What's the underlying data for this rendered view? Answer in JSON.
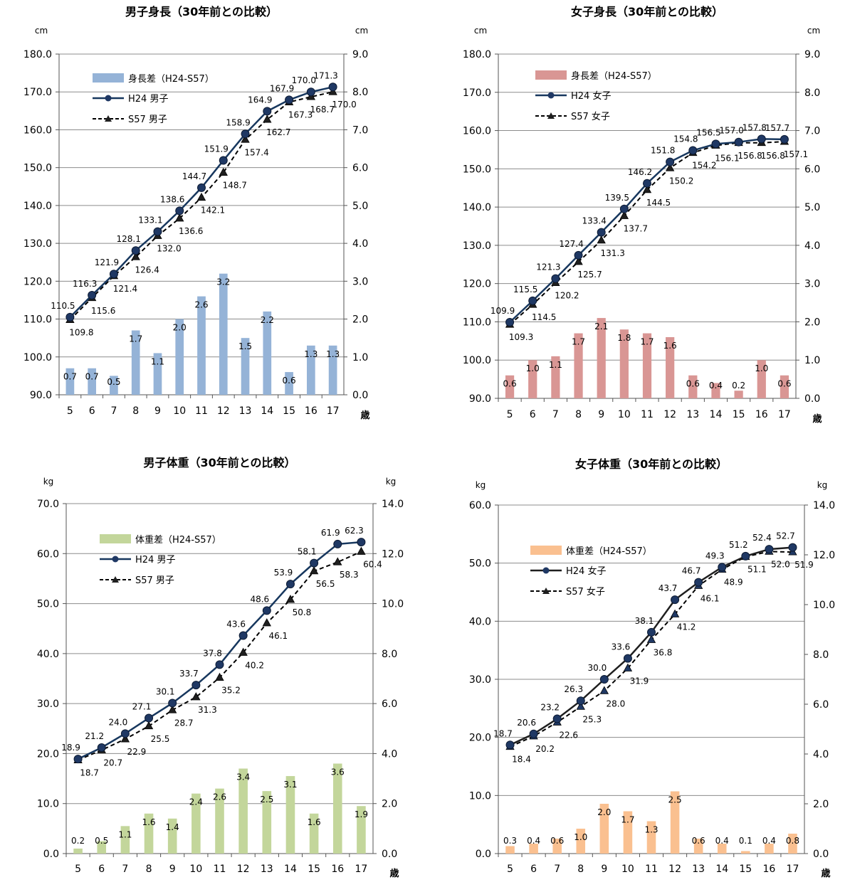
{
  "age_unit": "歳",
  "chart_data": [
    {
      "type": "bar",
      "title": "男子身長（30年前との比較）",
      "ylabel": "cm",
      "y2label": "cm",
      "xlabel": "歳",
      "categories": [
        "5",
        "6",
        "7",
        "8",
        "9",
        "10",
        "11",
        "12",
        "13",
        "14",
        "15",
        "16",
        "17"
      ],
      "ylim": [
        90,
        180
      ],
      "yticks": [
        "90.0",
        "100.0",
        "110.0",
        "120.0",
        "130.0",
        "140.0",
        "150.0",
        "160.0",
        "170.0",
        "180.0"
      ],
      "y2lim": [
        0,
        9
      ],
      "y2ticks": [
        "0.0",
        "1.0",
        "2.0",
        "3.0",
        "4.0",
        "5.0",
        "6.0",
        "7.0",
        "8.0",
        "9.0"
      ],
      "grid": true,
      "legend_position": "top-left",
      "bar_color": "#95b3d7",
      "line_color": "#17375e",
      "series": [
        {
          "name": "身長差（H24-S57）",
          "kind": "bar",
          "axis": "right",
          "values": [
            0.7,
            0.7,
            0.5,
            1.7,
            1.1,
            2.0,
            2.6,
            3.2,
            1.5,
            2.2,
            0.6,
            1.3,
            1.3
          ],
          "labels": [
            "0.7",
            "0.7",
            "0.5",
            "1.7",
            "1.1",
            "2.0",
            "2.6",
            "3.2",
            "1.5",
            "2.2",
            "0.6",
            "1.3",
            "1.3"
          ]
        },
        {
          "name": "H24 男子",
          "kind": "line",
          "axis": "left",
          "values": [
            110.5,
            116.3,
            121.9,
            128.1,
            133.1,
            138.6,
            144.7,
            151.9,
            158.9,
            164.9,
            167.9,
            170.0,
            171.3
          ],
          "labels": [
            "110.5",
            "116.3",
            "121.9",
            "128.1",
            "133.1",
            "138.6",
            "144.7",
            "151.9",
            "158.9",
            "164.9",
            "167.9",
            "170.0",
            "171.3"
          ]
        },
        {
          "name": "S57 男子",
          "kind": "line",
          "axis": "left",
          "values": [
            109.8,
            115.6,
            121.4,
            126.4,
            132.0,
            136.6,
            142.1,
            148.7,
            157.4,
            162.7,
            167.3,
            168.7,
            170.0
          ],
          "labels": [
            "109.8",
            "115.6",
            "121.4",
            "126.4",
            "132.0",
            "136.6",
            "142.1",
            "148.7",
            "157.4",
            "162.7",
            "167.3",
            "168.7",
            "170.0"
          ]
        }
      ]
    },
    {
      "type": "bar",
      "title": "女子身長（30年前との比較）",
      "ylabel": "cm",
      "y2label": "cm",
      "xlabel": "歳",
      "categories": [
        "5",
        "6",
        "7",
        "8",
        "9",
        "10",
        "11",
        "12",
        "13",
        "14",
        "15",
        "16",
        "17"
      ],
      "ylim": [
        90,
        180
      ],
      "yticks": [
        "90.0",
        "100.0",
        "110.0",
        "120.0",
        "130.0",
        "140.0",
        "150.0",
        "160.0",
        "170.0",
        "180.0"
      ],
      "y2lim": [
        0,
        9
      ],
      "y2ticks": [
        "0.0",
        "1.0",
        "2.0",
        "3.0",
        "4.0",
        "5.0",
        "6.0",
        "7.0",
        "8.0",
        "9.0"
      ],
      "grid": true,
      "legend_position": "top-left",
      "bar_color": "#d99694",
      "line_color": "#17375e",
      "series": [
        {
          "name": "身長差（H24-S57）",
          "kind": "bar",
          "axis": "right",
          "values": [
            0.6,
            1.0,
            1.1,
            1.7,
            2.1,
            1.8,
            1.7,
            1.6,
            0.6,
            0.4,
            0.2,
            1.0,
            0.6
          ],
          "labels": [
            "0.6",
            "1.0",
            "1.1",
            "1.7",
            "2.1",
            "1.8",
            "1.7",
            "1.6",
            "0.6",
            "0.4",
            "0.2",
            "1.0",
            "0.6"
          ]
        },
        {
          "name": "H24 女子",
          "kind": "line",
          "axis": "left",
          "values": [
            109.9,
            115.5,
            121.3,
            127.4,
            133.4,
            139.5,
            146.2,
            151.8,
            154.8,
            156.5,
            157.0,
            157.8,
            157.7
          ],
          "labels": [
            "109.9",
            "115.5",
            "121.3",
            "127.4",
            "133.4",
            "139.5",
            "146.2",
            "151.8",
            "154.8",
            "156.5",
            "157.0",
            "157.8",
            "157.7"
          ]
        },
        {
          "name": "S57 女子",
          "kind": "line",
          "axis": "left",
          "values": [
            109.3,
            114.5,
            120.2,
            125.7,
            131.3,
            137.7,
            144.5,
            150.2,
            154.2,
            156.1,
            156.8,
            156.8,
            157.1
          ],
          "labels": [
            "109.3",
            "114.5",
            "120.2",
            "125.7",
            "131.3",
            "137.7",
            "144.5",
            "150.2",
            "154.2",
            "156.1",
            "156.8",
            "156.8",
            "157.1"
          ]
        }
      ]
    },
    {
      "type": "bar",
      "title": "男子体重（30年前との比較）",
      "ylabel": "kg",
      "y2label": "kg",
      "xlabel": "歳",
      "categories": [
        "5",
        "6",
        "7",
        "8",
        "9",
        "10",
        "11",
        "12",
        "13",
        "14",
        "15",
        "16",
        "17"
      ],
      "ylim": [
        0,
        70
      ],
      "yticks": [
        "0.0",
        "10.0",
        "20.0",
        "30.0",
        "40.0",
        "50.0",
        "60.0",
        "70.0"
      ],
      "y2lim": [
        0,
        14
      ],
      "y2ticks": [
        "0.0",
        "2.0",
        "4.0",
        "6.0",
        "8.0",
        "10.0",
        "12.0",
        "14.0"
      ],
      "grid": true,
      "legend_position": "top-left",
      "bar_color": "#c3d69b",
      "line_color": "#17375e",
      "series": [
        {
          "name": "体重差（H24-S57）",
          "kind": "bar",
          "axis": "right",
          "values": [
            0.2,
            0.5,
            1.1,
            1.6,
            1.4,
            2.4,
            2.6,
            3.4,
            2.5,
            3.1,
            1.6,
            3.6,
            1.9
          ],
          "labels": [
            "0.2",
            "0.5",
            "1.1",
            "1.6",
            "1.4",
            "2.4",
            "2.6",
            "3.4",
            "2.5",
            "3.1",
            "1.6",
            "3.6",
            "1.9"
          ]
        },
        {
          "name": "H24 男子",
          "kind": "line",
          "axis": "left",
          "values": [
            18.9,
            21.2,
            24.0,
            27.1,
            30.1,
            33.7,
            37.8,
            43.6,
            48.6,
            53.9,
            58.1,
            61.9,
            62.3
          ],
          "labels": [
            "18.9",
            "21.2",
            "24.0",
            "27.1",
            "30.1",
            "33.7",
            "37.8",
            "43.6",
            "48.6",
            "53.9",
            "58.1",
            "61.9",
            "62.3"
          ]
        },
        {
          "name": "S57 男子",
          "kind": "line",
          "axis": "left",
          "values": [
            18.7,
            20.7,
            22.9,
            25.5,
            28.7,
            31.3,
            35.2,
            40.2,
            46.1,
            50.8,
            56.5,
            58.3,
            60.4
          ],
          "labels": [
            "18.7",
            "20.7",
            "22.9",
            "25.5",
            "28.7",
            "31.3",
            "35.2",
            "40.2",
            "46.1",
            "50.8",
            "56.5",
            "58.3",
            "60.4"
          ]
        }
      ]
    },
    {
      "type": "bar",
      "title": "女子体重（30年前との比較）",
      "ylabel": "kg",
      "y2label": "kg",
      "xlabel": "歳",
      "categories": [
        "5",
        "6",
        "7",
        "8",
        "9",
        "10",
        "11",
        "12",
        "13",
        "14",
        "15",
        "16",
        "17"
      ],
      "ylim": [
        0,
        60
      ],
      "yticks": [
        "0.0",
        "10.0",
        "20.0",
        "30.0",
        "40.0",
        "50.0",
        "60.0"
      ],
      "y2lim": [
        0,
        14
      ],
      "y2ticks": [
        "0.0",
        "2.0",
        "4.0",
        "6.0",
        "8.0",
        "10.0",
        "12.0",
        "14.0"
      ],
      "grid": true,
      "legend_position": "top-left",
      "bar_color": "#fac090",
      "line_color": "#1f1f1f",
      "series": [
        {
          "name": "体重差（H24-S57）",
          "kind": "bar",
          "axis": "right",
          "values": [
            0.3,
            0.4,
            0.6,
            1.0,
            2.0,
            1.7,
            1.3,
            2.5,
            0.6,
            0.4,
            0.1,
            0.4,
            0.8
          ],
          "labels": [
            "0.3",
            "0.4",
            "0.6",
            "1.0",
            "2.0",
            "1.7",
            "1.3",
            "2.5",
            "0.6",
            "0.4",
            "0.1",
            "0.4",
            "0.8"
          ]
        },
        {
          "name": "H24 女子",
          "kind": "line",
          "axis": "left",
          "values": [
            18.7,
            20.6,
            23.2,
            26.3,
            30.0,
            33.6,
            38.1,
            43.7,
            46.7,
            49.3,
            51.2,
            52.4,
            52.7
          ],
          "labels": [
            "18.7",
            "20.6",
            "23.2",
            "26.3",
            "30.0",
            "33.6",
            "38.1",
            "43.7",
            "46.7",
            "49.3",
            "51.2",
            "52.4",
            "52.7"
          ]
        },
        {
          "name": "S57 女子",
          "kind": "line",
          "axis": "left",
          "values": [
            18.4,
            20.2,
            22.6,
            25.3,
            28.0,
            31.9,
            36.8,
            41.2,
            46.1,
            48.9,
            51.1,
            52.0,
            51.9
          ],
          "labels": [
            "18.4",
            "20.2",
            "22.6",
            "25.3",
            "28.0",
            "31.9",
            "36.8",
            "41.2",
            "46.1",
            "48.9",
            "51.1",
            "52.0",
            "51.9"
          ]
        }
      ]
    }
  ]
}
